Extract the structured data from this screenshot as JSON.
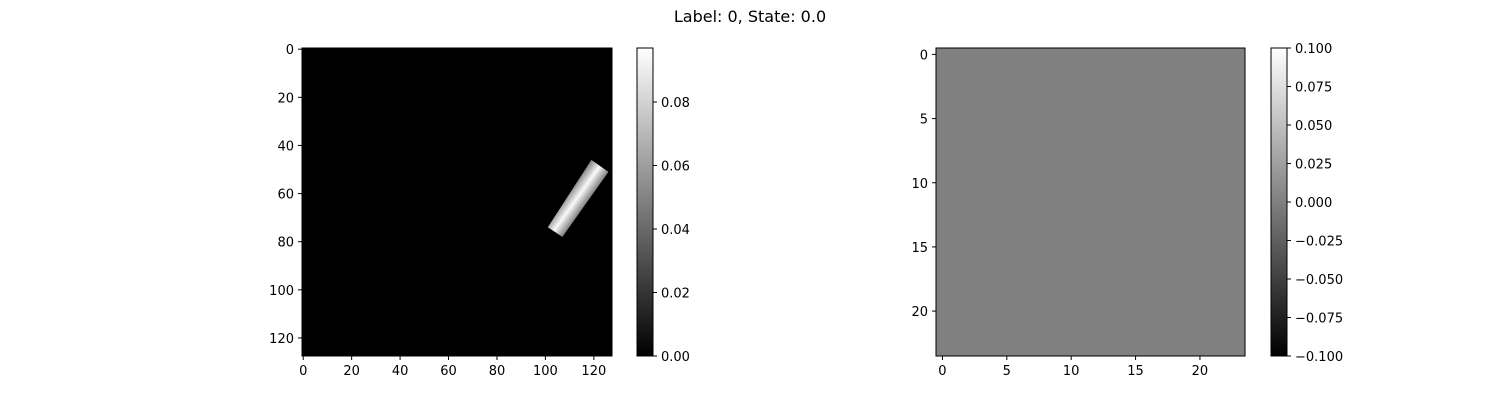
{
  "figure": {
    "suptitle": "Label: 0, State: 0.0"
  },
  "colors": {
    "background": "#ffffff",
    "axis": "#000000",
    "colormap": "gray"
  },
  "chart_data": [
    {
      "type": "heatmap",
      "title": "",
      "colormap": "gray",
      "image_shape": [
        128,
        128
      ],
      "x_range": [
        -0.5,
        127.5
      ],
      "y_range": [
        -0.5,
        127.5
      ],
      "y_inverted": true,
      "xticks": [
        0,
        20,
        40,
        60,
        80,
        100,
        120
      ],
      "xtick_labels": [
        "0",
        "20",
        "40",
        "60",
        "80",
        "100",
        "120"
      ],
      "yticks": [
        0,
        20,
        40,
        60,
        80,
        100,
        120
      ],
      "ytick_labels": [
        "0",
        "20",
        "40",
        "60",
        "80",
        "100",
        "120"
      ],
      "background_value": 0.0,
      "object": {
        "shape": "rotated rectangle",
        "corner_points": [
          [
            119,
            46
          ],
          [
            126,
            51
          ],
          [
            107,
            78
          ],
          [
            101,
            74
          ]
        ],
        "edge_value": 0.05,
        "center_value": 0.095
      },
      "colorbar": {
        "vmin": 0.0,
        "vmax": 0.097,
        "ticks": [
          0.0,
          0.02,
          0.04,
          0.06,
          0.08
        ],
        "tick_labels": [
          "0.00",
          "0.02",
          "0.04",
          "0.06",
          "0.08"
        ]
      }
    },
    {
      "type": "heatmap",
      "title": "",
      "colormap": "gray",
      "image_shape": [
        24,
        24
      ],
      "x_range": [
        -0.5,
        23.5
      ],
      "y_range": [
        -0.5,
        23.5
      ],
      "y_inverted": true,
      "xticks": [
        0,
        5,
        10,
        15,
        20
      ],
      "xtick_labels": [
        "0",
        "5",
        "10",
        "15",
        "20"
      ],
      "yticks": [
        0,
        5,
        10,
        15,
        20
      ],
      "ytick_labels": [
        "0",
        "5",
        "10",
        "15",
        "20"
      ],
      "uniform_value": 0.0,
      "colorbar": {
        "vmin": -0.1,
        "vmax": 0.1,
        "ticks": [
          -0.1,
          -0.075,
          -0.05,
          -0.025,
          0.0,
          0.025,
          0.05,
          0.075,
          0.1
        ],
        "tick_labels": [
          "−0.100",
          "−0.075",
          "−0.050",
          "−0.025",
          "0.000",
          "0.025",
          "0.050",
          "0.075",
          "0.100"
        ]
      }
    }
  ]
}
